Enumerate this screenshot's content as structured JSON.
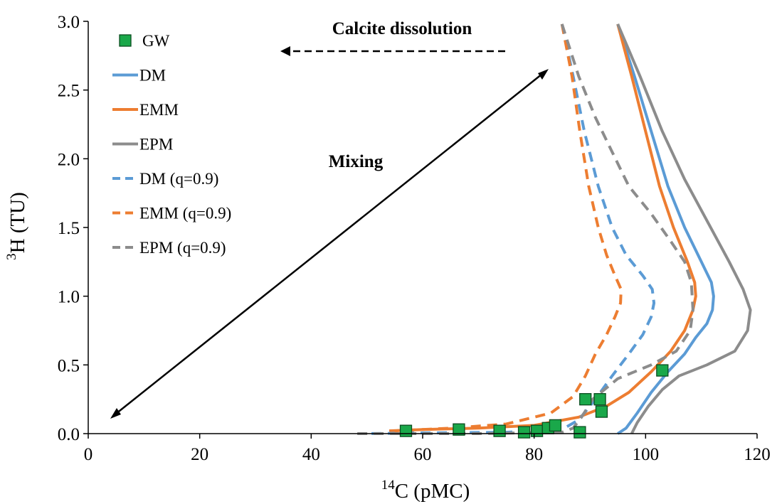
{
  "chart_data": {
    "type": "scatter",
    "title": "",
    "xlabel": {
      "sup": "14",
      "base": "C (pMC)"
    },
    "ylabel": {
      "sup": "3",
      "base": "H (TU)"
    },
    "xlim": [
      0,
      120
    ],
    "ylim": [
      0,
      3.0
    ],
    "xticks": [
      "0",
      "20",
      "40",
      "60",
      "80",
      "100",
      "120"
    ],
    "yticks": [
      "0.0",
      "0.5",
      "1.0",
      "1.5",
      "2.0",
      "2.5",
      "3.0"
    ],
    "grid": false,
    "legend_position": "top-left",
    "annotations": [
      {
        "text": "Calcite dissolution",
        "arrow": "dashed, pointing left"
      },
      {
        "text": "Mixing",
        "arrow": "double-headed"
      }
    ],
    "series": [
      {
        "name": "GW",
        "kind": "scatter",
        "marker": "square",
        "color": "#1aa84a",
        "points": [
          [
            57,
            0.02
          ],
          [
            66.5,
            0.03
          ],
          [
            73.8,
            0.02
          ],
          [
            78.2,
            0.01
          ],
          [
            80.5,
            0.02
          ],
          [
            82.5,
            0.04
          ],
          [
            83.8,
            0.06
          ],
          [
            88.2,
            0.01
          ],
          [
            89.2,
            0.25
          ],
          [
            91.8,
            0.25
          ],
          [
            92.1,
            0.16
          ],
          [
            103,
            0.46
          ]
        ]
      },
      {
        "name": "DM",
        "kind": "line",
        "dash": "solid",
        "color": "#5b9bd5",
        "points": [
          [
            95,
            2.98
          ],
          [
            98,
            2.6
          ],
          [
            101,
            2.2
          ],
          [
            104,
            1.8
          ],
          [
            107,
            1.5
          ],
          [
            110,
            1.25
          ],
          [
            111.8,
            1.1
          ],
          [
            112.2,
            1.0
          ],
          [
            112,
            0.9
          ],
          [
            111,
            0.8
          ],
          [
            109,
            0.7
          ],
          [
            107,
            0.58
          ],
          [
            104,
            0.45
          ],
          [
            101,
            0.3
          ],
          [
            98.5,
            0.15
          ],
          [
            96.5,
            0.04
          ],
          [
            95,
            0.0
          ]
        ]
      },
      {
        "name": "EMM",
        "kind": "line",
        "dash": "solid",
        "color": "#ed7d31",
        "points": [
          [
            95,
            2.98
          ],
          [
            97.5,
            2.6
          ],
          [
            100,
            2.2
          ],
          [
            102.5,
            1.8
          ],
          [
            105,
            1.5
          ],
          [
            107.5,
            1.25
          ],
          [
            108.8,
            1.1
          ],
          [
            109,
            1.0
          ],
          [
            108.5,
            0.9
          ],
          [
            107,
            0.75
          ],
          [
            104.5,
            0.6
          ],
          [
            101,
            0.45
          ],
          [
            97,
            0.3
          ],
          [
            93,
            0.2
          ],
          [
            88,
            0.12
          ],
          [
            80,
            0.06
          ],
          [
            70,
            0.04
          ],
          [
            60,
            0.03
          ],
          [
            54,
            0.02
          ]
        ]
      },
      {
        "name": "EPM",
        "kind": "line",
        "dash": "solid",
        "color": "#8c8c8c",
        "points": [
          [
            95,
            2.98
          ],
          [
            99,
            2.6
          ],
          [
            103,
            2.2
          ],
          [
            107,
            1.85
          ],
          [
            111,
            1.55
          ],
          [
            115,
            1.25
          ],
          [
            117.5,
            1.05
          ],
          [
            118.8,
            0.9
          ],
          [
            118.3,
            0.75
          ],
          [
            116,
            0.6
          ],
          [
            111,
            0.5
          ],
          [
            106,
            0.42
          ],
          [
            103,
            0.32
          ],
          [
            100.5,
            0.2
          ],
          [
            98.5,
            0.08
          ],
          [
            97.5,
            0.0
          ]
        ]
      },
      {
        "name": "DM (q=0.9)",
        "kind": "line",
        "dash": "dashed",
        "color": "#5b9bd5",
        "points": [
          [
            85,
            2.98
          ],
          [
            87,
            2.6
          ],
          [
            89,
            2.2
          ],
          [
            91.5,
            1.8
          ],
          [
            94,
            1.5
          ],
          [
            96.5,
            1.3
          ],
          [
            99.5,
            1.15
          ],
          [
            101.2,
            1.05
          ],
          [
            101.5,
            0.95
          ],
          [
            101,
            0.85
          ],
          [
            99.5,
            0.72
          ],
          [
            97,
            0.58
          ],
          [
            94,
            0.42
          ],
          [
            91,
            0.25
          ],
          [
            88,
            0.1
          ],
          [
            85,
            0.03
          ],
          [
            75,
            0.01
          ],
          [
            60,
            0.005
          ],
          [
            50,
            0.0
          ]
        ]
      },
      {
        "name": "EMM (q=0.9)",
        "kind": "line",
        "dash": "dashed",
        "color": "#ed7d31",
        "points": [
          [
            85,
            2.98
          ],
          [
            86.8,
            2.6
          ],
          [
            88.2,
            2.2
          ],
          [
            89.8,
            1.8
          ],
          [
            91.5,
            1.5
          ],
          [
            93,
            1.3
          ],
          [
            94.5,
            1.15
          ],
          [
            95.6,
            1.05
          ],
          [
            95.5,
            0.95
          ],
          [
            94.5,
            0.85
          ],
          [
            93,
            0.72
          ],
          [
            91,
            0.58
          ],
          [
            89.2,
            0.42
          ],
          [
            87,
            0.27
          ],
          [
            83,
            0.15
          ],
          [
            75,
            0.07
          ],
          [
            65,
            0.04
          ],
          [
            55,
            0.02
          ]
        ]
      },
      {
        "name": "EPM (q=0.9)",
        "kind": "line",
        "dash": "dashed",
        "color": "#8c8c8c",
        "points": [
          [
            85,
            2.98
          ],
          [
            88,
            2.6
          ],
          [
            91,
            2.3
          ],
          [
            94,
            2.05
          ],
          [
            97,
            1.8
          ],
          [
            101,
            1.6
          ],
          [
            104.5,
            1.4
          ],
          [
            107,
            1.25
          ],
          [
            108.2,
            1.1
          ],
          [
            108.5,
            0.9
          ],
          [
            108,
            0.75
          ],
          [
            105.5,
            0.6
          ],
          [
            101,
            0.5
          ],
          [
            95,
            0.4
          ],
          [
            90.5,
            0.25
          ],
          [
            88.5,
            0.12
          ],
          [
            87,
            0.04
          ],
          [
            85,
            0.01
          ],
          [
            70,
            0.0
          ],
          [
            48,
            0.0
          ]
        ]
      }
    ]
  }
}
